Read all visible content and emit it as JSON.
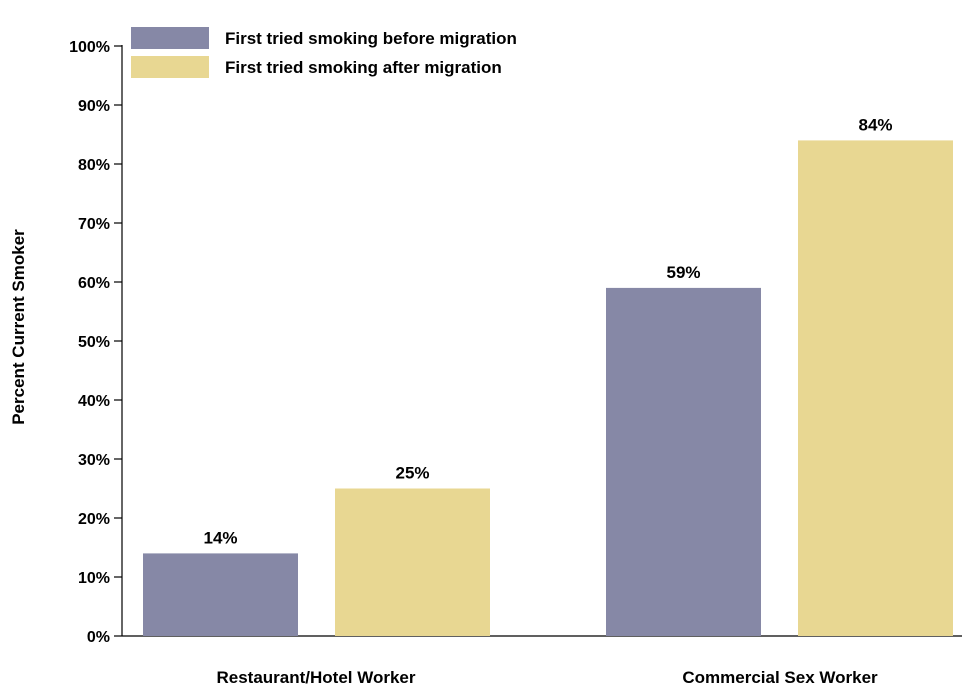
{
  "chart_data": {
    "type": "bar",
    "ylabel": "Percent Current Smoker",
    "xlabel": "",
    "ylim": [
      0,
      100
    ],
    "yticks": [
      "0%",
      "10%",
      "20%",
      "30%",
      "40%",
      "50%",
      "60%",
      "70%",
      "80%",
      "90%",
      "100%"
    ],
    "categories": [
      "Restaurant/Hotel Worker",
      "Commercial Sex Worker"
    ],
    "series": [
      {
        "name": "First tried smoking before migration",
        "color": "#8688a6",
        "values": [
          14,
          59
        ],
        "value_labels": [
          "14%",
          "59%"
        ]
      },
      {
        "name": "First tried smoking after migration",
        "color": "#e8d792",
        "values": [
          25,
          84
        ],
        "value_labels": [
          "25%",
          "84%"
        ]
      }
    ],
    "legend_position": "top-left",
    "grid": false
  }
}
